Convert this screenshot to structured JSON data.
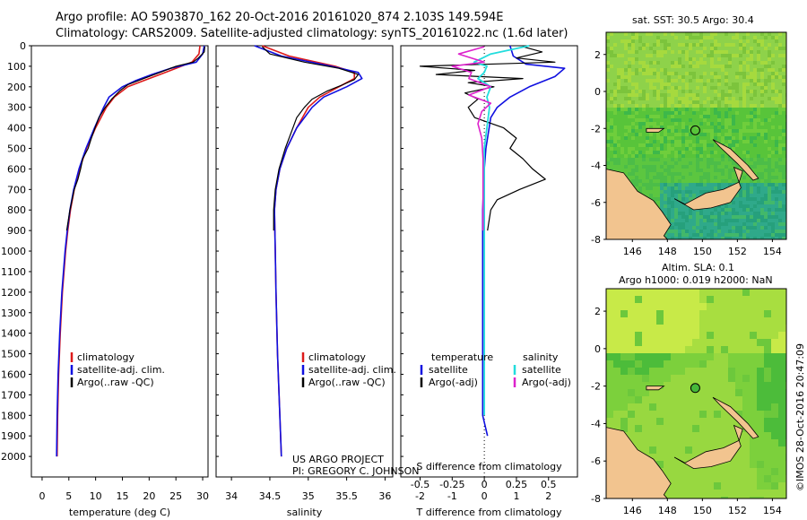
{
  "header": {
    "line1": "Argo profile: AO 5903870_162 20-Oct-2016 20161020_874 2.103S 149.594E",
    "line2": "Climatology: CARS2009. Satellite-adjusted climatology: synTS_20161022.nc (1.6d later)"
  },
  "project": {
    "line1": "US ARGO PROJECT",
    "line2": "PI: GREGORY C. JOHNSON"
  },
  "stamp": "©IMOS 28-Oct-2016 20:47:09",
  "colors": {
    "climatology": "#dd1a1a",
    "satellite": "#1010e0",
    "argo": "#000000",
    "cyan": "#22dddd",
    "magenta": "#dd22cc",
    "land": "#f2c48f"
  },
  "chart_data": [
    {
      "type": "line",
      "id": "temperature",
      "xlabel": "temperature (deg C)",
      "ylabel": "",
      "xlim": [
        -2,
        31
      ],
      "ylim": [
        0,
        2100
      ],
      "xticks": [
        0,
        5,
        10,
        15,
        20,
        25,
        30
      ],
      "yticks": [
        0,
        100,
        200,
        300,
        400,
        500,
        600,
        700,
        800,
        900,
        1000,
        1100,
        1200,
        1300,
        1400,
        1500,
        1600,
        1700,
        1800,
        1900,
        2000
      ],
      "legend": [
        "climatology",
        "satellite-adj. clim.",
        "Argo(..raw -QC)"
      ],
      "series": [
        {
          "name": "climatology",
          "depth": [
            0,
            40,
            80,
            110,
            140,
            170,
            200,
            250,
            300,
            400,
            500,
            600,
            700,
            800,
            900,
            1000,
            1200,
            1400,
            1600,
            1800,
            2000
          ],
          "values": [
            29.5,
            29.3,
            28.0,
            25.0,
            22.0,
            19.0,
            16.0,
            13.5,
            12.0,
            10.0,
            8.3,
            7.0,
            6.0,
            5.3,
            4.8,
            4.4,
            3.8,
            3.4,
            3.1,
            2.9,
            2.8
          ]
        },
        {
          "name": "satellite-adj. clim.",
          "depth": [
            0,
            40,
            80,
            110,
            140,
            170,
            200,
            250,
            300,
            400,
            500,
            600,
            700,
            800,
            900,
            1000,
            1200,
            1400,
            1600,
            1800,
            2000
          ],
          "values": [
            30.3,
            30.0,
            28.8,
            24.0,
            20.5,
            17.5,
            15.0,
            12.5,
            11.5,
            9.8,
            8.2,
            6.9,
            5.9,
            5.2,
            4.7,
            4.3,
            3.7,
            3.3,
            3.0,
            2.8,
            2.7
          ]
        },
        {
          "name": "Argo(..raw -QC)",
          "depth": [
            5,
            30,
            60,
            80,
            100,
            130,
            160,
            190,
            220,
            260,
            300,
            350,
            400,
            450,
            500,
            550,
            600,
            650,
            700,
            750,
            800,
            850,
            900
          ],
          "values": [
            30.4,
            30.3,
            29.2,
            28.2,
            25.0,
            22.0,
            19.0,
            16.0,
            14.5,
            13.0,
            11.8,
            10.6,
            9.9,
            9.2,
            8.6,
            7.6,
            7.2,
            6.7,
            6.0,
            5.6,
            5.2,
            4.9,
            4.6
          ]
        }
      ]
    },
    {
      "type": "line",
      "id": "salinity",
      "xlabel": "salinity",
      "xlim": [
        33.8,
        36.1
      ],
      "ylim": [
        0,
        2100
      ],
      "xticks": [
        34,
        34.5,
        35,
        35.5,
        36
      ],
      "legend": [
        "climatology",
        "satellite-adj. clim.",
        "Argo(..raw -QC)"
      ],
      "series": [
        {
          "name": "climatology",
          "depth": [
            0,
            50,
            100,
            130,
            160,
            200,
            250,
            300,
            400,
            500,
            600,
            700,
            800,
            1000,
            1200,
            1500,
            2000
          ],
          "values": [
            34.4,
            34.75,
            35.35,
            35.6,
            35.6,
            35.4,
            35.15,
            35.0,
            34.85,
            34.72,
            34.63,
            34.58,
            34.56,
            34.57,
            34.58,
            34.6,
            34.65
          ]
        },
        {
          "name": "satellite-adj. clim.",
          "depth": [
            0,
            50,
            100,
            130,
            160,
            200,
            250,
            300,
            400,
            500,
            600,
            700,
            800,
            1000,
            1200,
            1500,
            2000
          ],
          "values": [
            34.3,
            34.65,
            35.3,
            35.65,
            35.7,
            35.5,
            35.2,
            35.05,
            34.85,
            34.72,
            34.63,
            34.58,
            34.56,
            34.57,
            34.58,
            34.6,
            34.65
          ]
        },
        {
          "name": "Argo(..raw -QC)",
          "depth": [
            5,
            40,
            80,
            110,
            140,
            165,
            190,
            220,
            260,
            300,
            350,
            400,
            500,
            600,
            700,
            800,
            900
          ],
          "values": [
            34.4,
            34.5,
            34.95,
            35.4,
            35.65,
            35.6,
            35.45,
            35.25,
            35.05,
            34.95,
            34.85,
            34.8,
            34.7,
            34.62,
            34.57,
            34.55,
            34.55
          ]
        }
      ]
    },
    {
      "type": "line",
      "id": "difference",
      "xlabel": "T difference from climatology",
      "xlabel2": "S difference from climatology",
      "xlim": [
        -2.6,
        2.9
      ],
      "ylim": [
        0,
        2100
      ],
      "xticks": [
        -2,
        -1,
        0,
        1,
        2
      ],
      "xticks2": [
        "-0.5",
        "-0.25",
        "0",
        "0.25",
        "0.5"
      ],
      "legend_headers": [
        "temperature",
        "salinity"
      ],
      "legend": [
        "satellite",
        "Argo(-adj)",
        "satellite",
        "Argo(-adj)"
      ],
      "series": [
        {
          "name": "T satellite",
          "depth": [
            0,
            50,
            90,
            110,
            150,
            200,
            250,
            300,
            350,
            400,
            500,
            600,
            800,
            1000,
            1400,
            1800,
            1900
          ],
          "values": [
            0.8,
            0.9,
            1.3,
            2.5,
            2.2,
            1.4,
            0.8,
            0.4,
            0.2,
            0.15,
            0.05,
            0.0,
            -0.05,
            -0.05,
            -0.05,
            -0.05,
            0.1
          ]
        },
        {
          "name": "T Argo(-adj)",
          "depth": [
            5,
            30,
            60,
            80,
            100,
            120,
            140,
            160,
            180,
            200,
            230,
            260,
            300,
            350,
            400,
            450,
            500,
            550,
            600,
            650,
            700,
            750,
            800,
            850,
            900
          ],
          "values": [
            1.2,
            1.8,
            1.0,
            2.2,
            -2.0,
            -0.3,
            -1.5,
            1.2,
            -0.5,
            0.3,
            -0.6,
            -0.2,
            -0.5,
            -0.3,
            0.6,
            1.0,
            0.8,
            1.2,
            1.5,
            1.9,
            1.1,
            0.4,
            0.2,
            0.15,
            0.1
          ]
        },
        {
          "name": "S satellite",
          "depth": [
            0,
            40,
            80,
            100,
            130,
            160,
            200,
            250,
            300,
            400,
            500,
            700,
            1000,
            1500,
            1800
          ],
          "values": [
            0.35,
            0.05,
            -0.08,
            0.02,
            0.0,
            -0.05,
            0.05,
            0.02,
            0.04,
            0.02,
            0.0,
            0.0,
            0.0,
            0.0,
            0.0
          ]
        },
        {
          "name": "S Argo(-adj)",
          "depth": [
            5,
            40,
            80,
            100,
            130,
            160,
            200,
            240,
            280,
            320,
            380,
            450,
            550,
            650,
            750,
            850,
            900
          ],
          "values": [
            0.0,
            -0.2,
            0.0,
            -0.25,
            -0.1,
            -0.12,
            0.05,
            -0.12,
            0.05,
            -0.02,
            -0.05,
            -0.02,
            -0.01,
            -0.01,
            -0.01,
            -0.01,
            -0.01
          ]
        }
      ]
    },
    {
      "type": "heatmap",
      "id": "sst-map",
      "title": "sat. SST: 30.5 Argo: 30.4",
      "xlim": [
        144.5,
        154.8
      ],
      "ylim": [
        -8,
        3.2
      ],
      "xticks": [
        146,
        148,
        150,
        152,
        154
      ],
      "yticks": [
        2,
        0,
        -2,
        -4,
        -6,
        -8
      ],
      "marker": {
        "lon": 149.594,
        "lat": -2.103
      }
    },
    {
      "type": "heatmap",
      "id": "sla-map",
      "title": "Altim. SLA: 0.1",
      "subtitle": "Argo h1000: 0.019 h2000: NaN",
      "xlim": [
        144.5,
        154.8
      ],
      "ylim": [
        -8,
        3.2
      ],
      "xticks": [
        146,
        148,
        150,
        152,
        154
      ],
      "yticks": [
        2,
        0,
        -2,
        -4,
        -6,
        -8
      ],
      "marker": {
        "lon": 149.594,
        "lat": -2.103
      }
    }
  ]
}
